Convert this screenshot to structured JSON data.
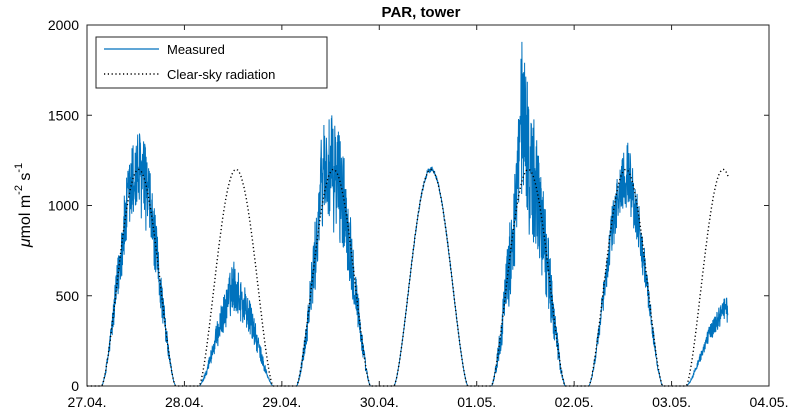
{
  "chart_data": {
    "type": "line",
    "title": "PAR, tower",
    "ylabel_parts": {
      "mu": "μ",
      "main": "mol m",
      "exp1": "-2",
      "mid": " s",
      "exp2": "-1"
    },
    "xlabel": "",
    "x_tick_labels": [
      "27.04.",
      "28.04.",
      "29.04.",
      "30.04.",
      "01.05.",
      "02.05.",
      "03.05.",
      "04.05."
    ],
    "y_ticks": [
      0,
      500,
      1000,
      1500,
      2000
    ],
    "xlim_days": [
      0,
      7
    ],
    "ylim": [
      0,
      2000
    ],
    "grid": false,
    "legend_position": "top-left",
    "series": [
      {
        "name": "Measured",
        "color": "#0072BD",
        "style": "solid",
        "daily_peaks": [
          1170,
          600,
          1460,
          1210,
          1800,
          1220,
          470
        ],
        "daily_peak_times": [
          0.45,
          0.5,
          0.42,
          0.57,
          0.47,
          0.54,
          0.55
        ],
        "daily_scale": [
          1.0,
          0.42,
          1.0,
          1.0,
          1.0,
          0.95,
          0.32
        ],
        "daily_noise": [
          250,
          130,
          330,
          15,
          380,
          180,
          60
        ],
        "last_day_end_fraction": 0.58
      },
      {
        "name": "Clear-sky radiation",
        "color": "#000000",
        "style": "dotted",
        "daily_peak": 1200,
        "sunrise_fraction": 0.15,
        "sunset_fraction": 0.91,
        "last_day_end_fraction": 0.58,
        "last_day_end_value": 1120
      }
    ]
  }
}
